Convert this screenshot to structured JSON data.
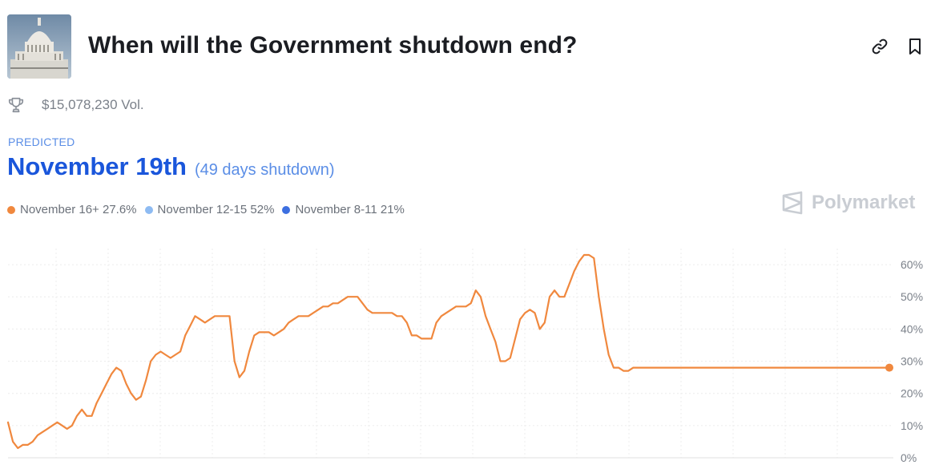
{
  "header": {
    "title": "When will the Government shutdown end?"
  },
  "volume": {
    "text": "$15,078,230 Vol."
  },
  "prediction": {
    "label": "PREDICTED",
    "value": "November 19th",
    "sub": "(49 days shutdown)"
  },
  "legend": [
    {
      "text": "November 16+ 27.6%",
      "color": "#f0883e"
    },
    {
      "text": "November 12-15 52%",
      "color": "#8ebbf2"
    },
    {
      "text": "November 8-11 21%",
      "color": "#3d6fe0"
    }
  ],
  "brand": {
    "name": "Polymarket"
  },
  "icons": {
    "thumbnail": "capitol-building-image",
    "link": "link-icon",
    "bookmark": "bookmark-icon",
    "trophy": "trophy-icon",
    "brand": "polymarket-logo-icon"
  },
  "chart_data": {
    "type": "line",
    "title": "",
    "xlabel": "",
    "ylabel": "",
    "ylim": [
      0,
      65
    ],
    "yticks": [
      "0%",
      "10%",
      "20%",
      "30%",
      "40%",
      "50%",
      "60%"
    ],
    "ytick_values": [
      0,
      10,
      20,
      30,
      40,
      50,
      60
    ],
    "grid": true,
    "y_axis_side": "right",
    "x": [
      0,
      1,
      2,
      3,
      4,
      5,
      6,
      7,
      8,
      9,
      10,
      11,
      12,
      13,
      14,
      15,
      16,
      17,
      18,
      19,
      20,
      21,
      22,
      23,
      24,
      25,
      26,
      27,
      28,
      29,
      30,
      31,
      32,
      33,
      34,
      35,
      36,
      37,
      38,
      39,
      40,
      41,
      42,
      43,
      44,
      45,
      46,
      47,
      48,
      49,
      50,
      51,
      52,
      53,
      54,
      55,
      56,
      57,
      58,
      59,
      60,
      61,
      62,
      63,
      64,
      65,
      66,
      67,
      68,
      69,
      70,
      71,
      72,
      73,
      74,
      75,
      76,
      77,
      78,
      79,
      80,
      81,
      82,
      83,
      84,
      85,
      86,
      87,
      88,
      89,
      90,
      91,
      92,
      93,
      94,
      95,
      96,
      97,
      98,
      99,
      100,
      101,
      102,
      103,
      104,
      105,
      106,
      107,
      108,
      109,
      110,
      111,
      112,
      113,
      114,
      115,
      116,
      117,
      118,
      119,
      120,
      121,
      122,
      123,
      124,
      125,
      126,
      127,
      128,
      129,
      130,
      131,
      132,
      133,
      134,
      135,
      136,
      137,
      138,
      139,
      140,
      141,
      142,
      143,
      144,
      145,
      146,
      147,
      148,
      149,
      150,
      151,
      152,
      153,
      154,
      155,
      156,
      157,
      158,
      159,
      160,
      161,
      162,
      163,
      164,
      165,
      166,
      167,
      168,
      169,
      170,
      171,
      172,
      173,
      174,
      175,
      176,
      177,
      178,
      179
    ],
    "series": [
      {
        "name": "November 16+",
        "color": "#f0883e",
        "values": [
          11,
          5,
          3,
          4,
          4,
          5,
          7,
          8,
          9,
          10,
          11,
          10,
          9,
          10,
          13,
          15,
          13,
          13,
          17,
          20,
          23,
          26,
          28,
          27,
          23,
          20,
          18,
          19,
          24,
          30,
          32,
          33,
          32,
          31,
          32,
          33,
          38,
          41,
          44,
          43,
          42,
          43,
          44,
          44,
          44,
          44,
          30,
          25,
          27,
          33,
          38,
          39,
          39,
          39,
          38,
          39,
          40,
          42,
          43,
          44,
          44,
          44,
          45,
          46,
          47,
          47,
          48,
          48,
          49,
          50,
          50,
          50,
          48,
          46,
          45,
          45,
          45,
          45,
          45,
          44,
          44,
          42,
          38,
          38,
          37,
          37,
          37,
          42,
          44,
          45,
          46,
          47,
          47,
          47,
          48,
          52,
          50,
          44,
          40,
          36,
          30,
          30,
          31,
          37,
          43,
          45,
          46,
          45,
          40,
          42,
          50,
          52,
          50,
          50,
          54,
          58,
          61,
          63,
          63,
          62,
          50,
          40,
          32,
          28,
          28,
          27,
          27,
          28,
          28,
          28,
          28,
          28,
          28,
          28,
          28,
          28,
          28,
          28,
          28,
          28,
          28,
          28,
          28,
          28,
          28,
          28,
          28,
          28,
          28,
          28,
          28,
          28,
          28,
          28,
          28,
          28,
          28,
          28,
          28,
          28,
          28,
          28,
          28,
          28,
          28,
          28,
          28,
          28,
          28,
          28,
          28,
          28,
          28,
          28,
          28,
          28,
          28,
          28,
          28,
          28
        ]
      }
    ],
    "note": "index positions only"
  }
}
